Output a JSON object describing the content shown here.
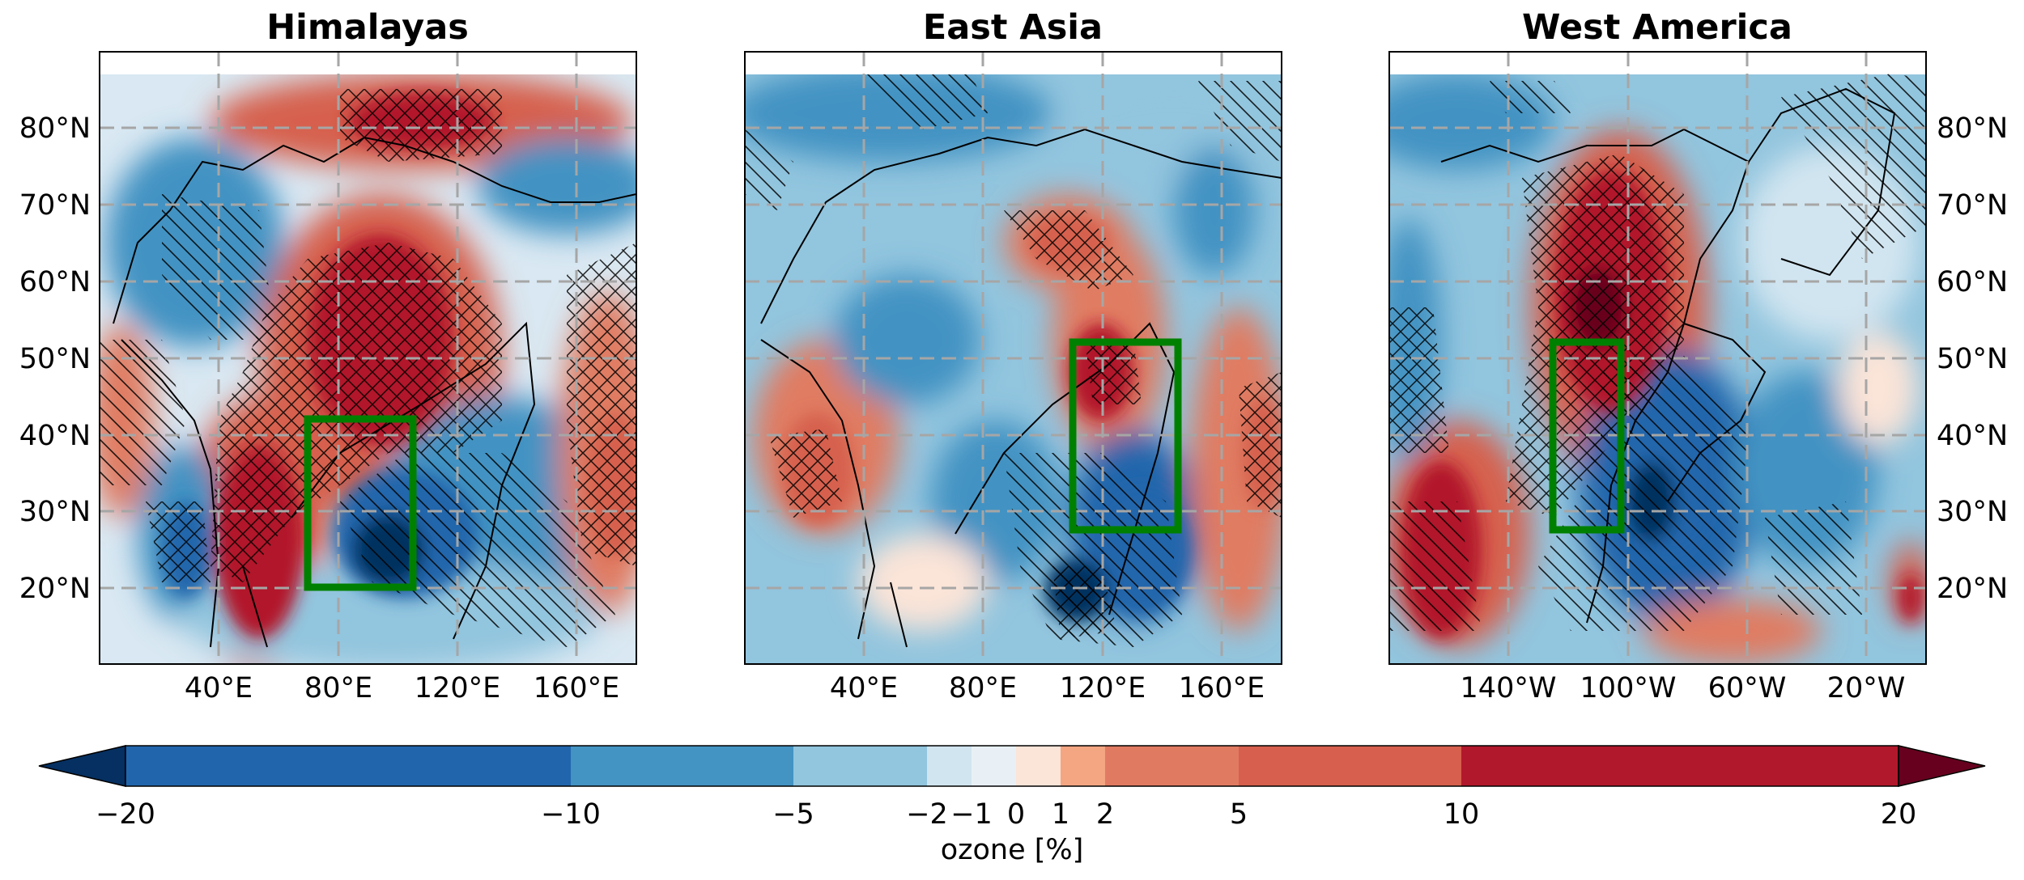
{
  "figure": {
    "panels": [
      {
        "title": "Himalayas",
        "x_ticks": [
          "40°E",
          "80°E",
          "120°E",
          "160°E"
        ],
        "y_ticks": [
          "80°N",
          "70°N",
          "60°N",
          "50°N",
          "40°N",
          "30°N",
          "20°N"
        ],
        "y_tick_side": "left",
        "region_box": {
          "lon": [
            70,
            105
          ],
          "lat": [
            20,
            42
          ]
        }
      },
      {
        "title": "East Asia",
        "x_ticks": [
          "40°E",
          "80°E",
          "120°E",
          "160°E"
        ],
        "y_ticks": [],
        "y_tick_side": "none",
        "region_box": {
          "lon": [
            110,
            145
          ],
          "lat": [
            27,
            52
          ]
        }
      },
      {
        "title": "West America",
        "x_ticks": [
          "140°W",
          "100°W",
          "60°W",
          "20°W"
        ],
        "y_ticks": [
          "80°N",
          "70°N",
          "60°N",
          "50°N",
          "40°N",
          "30°N",
          "20°N"
        ],
        "y_tick_side": "right",
        "region_box": {
          "lon": [
            -125,
            -102
          ],
          "lat": [
            27,
            52
          ]
        }
      }
    ],
    "colorbar": {
      "label": "ozone [%]",
      "boundaries": [
        -20,
        -10,
        -5,
        -2,
        -1,
        0,
        1,
        2,
        5,
        10,
        20
      ],
      "tick_labels": [
        "−20",
        "−10",
        "−5",
        "−2",
        "−1",
        "0",
        "1",
        "2",
        "5",
        "10",
        "20"
      ],
      "extend": "both",
      "colors": [
        "#053061",
        "#2166ac",
        "#4393c3",
        "#92c5de",
        "#d1e5f0",
        "#e8f0f5",
        "#fbe4d8",
        "#f4a582",
        "#e07b62",
        "#d6604d",
        "#b2182b",
        "#67001f"
      ]
    },
    "colors": {
      "region_box": "#008000",
      "grid": "#a6a6a6",
      "coastline": "#000000",
      "hatch": "#000000"
    }
  }
}
